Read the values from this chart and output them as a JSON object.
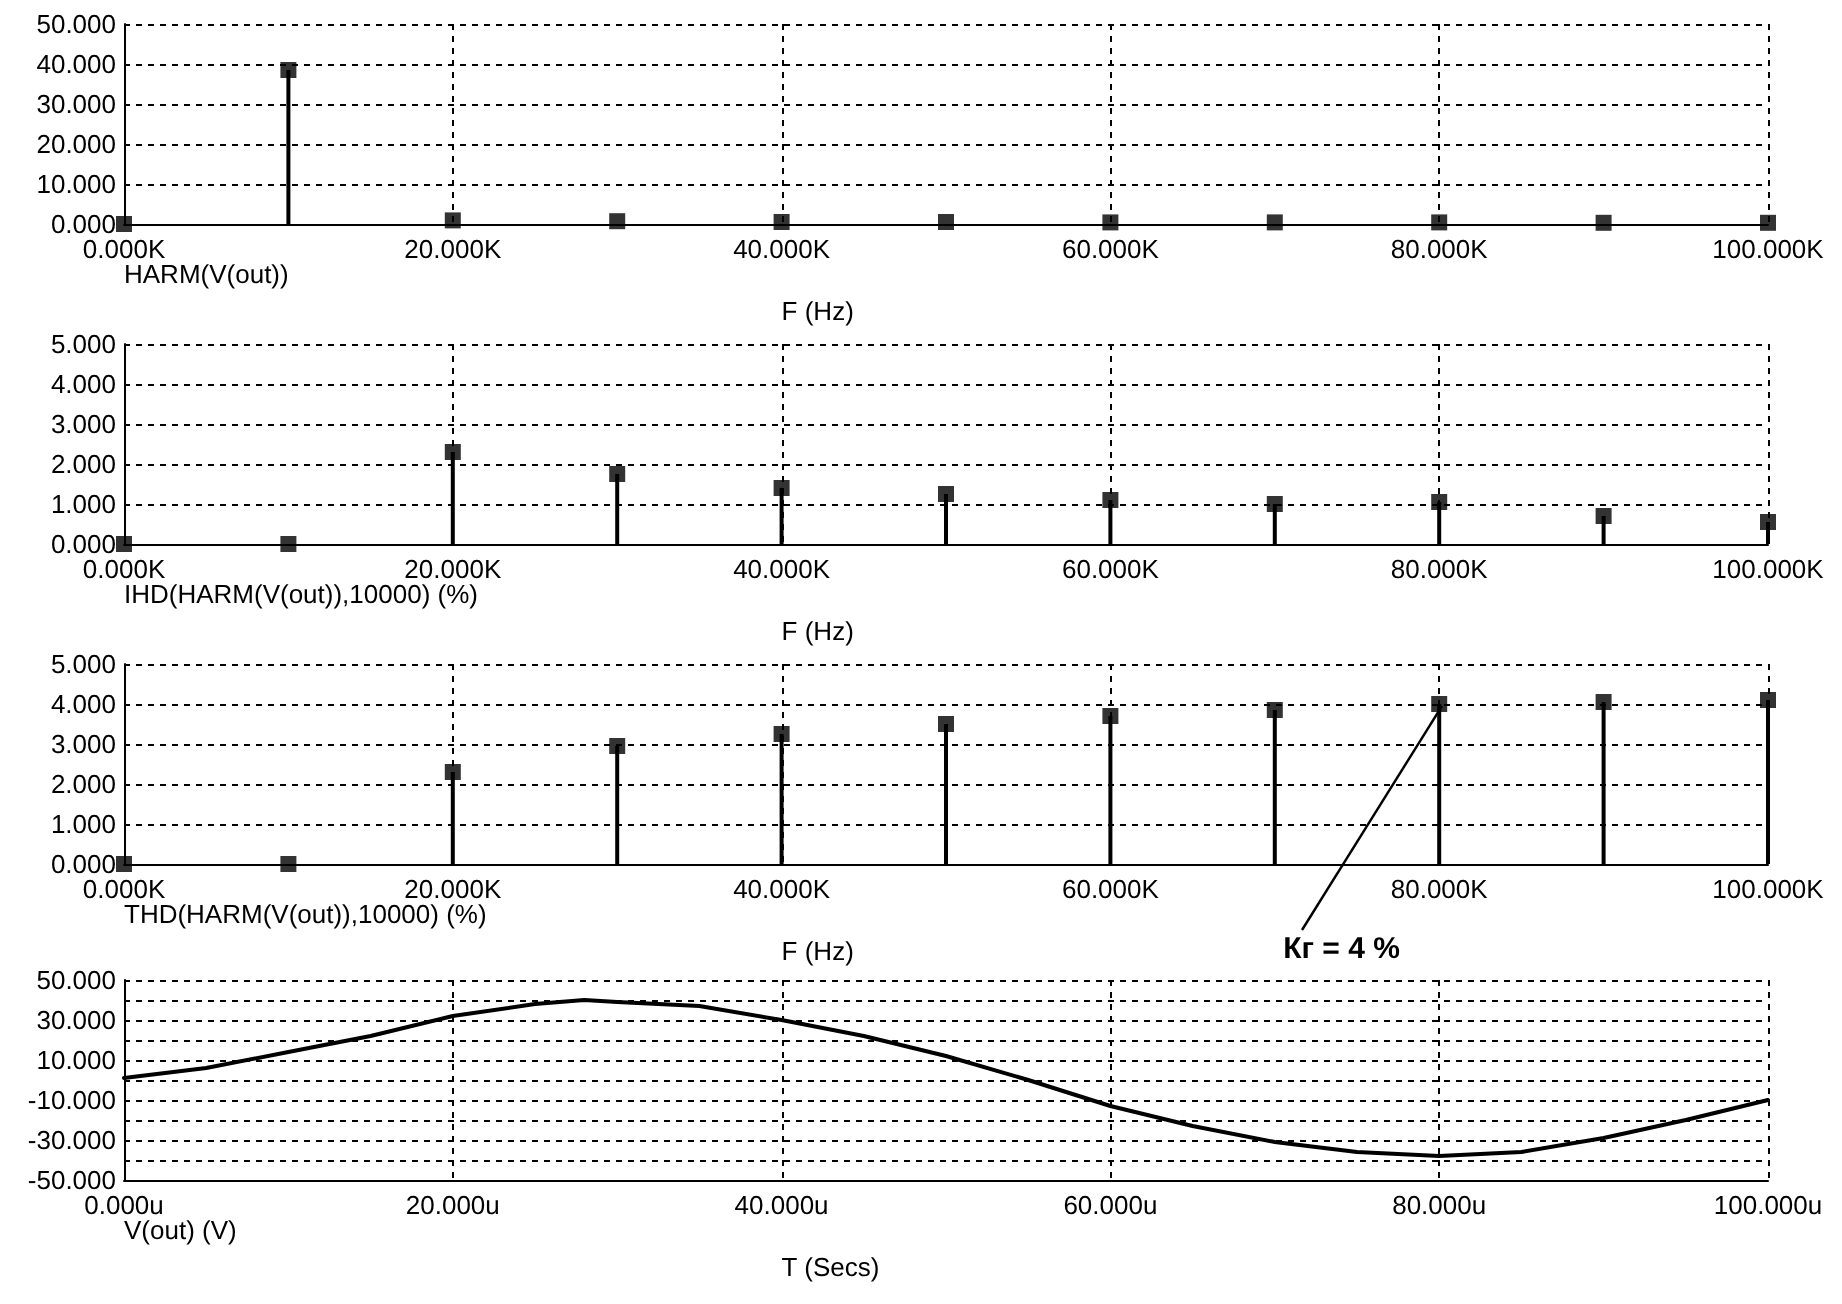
{
  "chart_data": [
    {
      "type": "lollipop",
      "xlabel": "F (Hz)",
      "marker": "square",
      "grid": true,
      "legend": "bottom left",
      "x": [
        0,
        10000,
        20000,
        30000,
        40000,
        50000,
        60000,
        70000,
        80000,
        90000,
        100000
      ],
      "series": [
        {
          "name": "HARM(V(out))",
          "color": "#000000",
          "values": [
            0,
            38.5,
            0.9,
            0.7,
            0.5,
            0.5,
            0.4,
            0.4,
            0.4,
            0.3,
            0.3
          ]
        }
      ],
      "xlim": [
        0,
        100000
      ],
      "xticks": [
        {
          "value": 0,
          "label": "0.000K"
        },
        {
          "value": 20000,
          "label": "20.000K"
        },
        {
          "value": 40000,
          "label": "40.000K"
        },
        {
          "value": 60000,
          "label": "60.000K"
        },
        {
          "value": 80000,
          "label": "80.000K"
        },
        {
          "value": 100000,
          "label": "100.000K"
        }
      ],
      "ylim": [
        0,
        50
      ],
      "yticks": [
        {
          "value": 0,
          "label": "0.000"
        },
        {
          "value": 10,
          "label": "10.000"
        },
        {
          "value": 20,
          "label": "20.000"
        },
        {
          "value": 30,
          "label": "30.000"
        },
        {
          "value": 40,
          "label": "40.000"
        },
        {
          "value": 50,
          "label": "50.000"
        }
      ]
    },
    {
      "type": "lollipop",
      "xlabel": "F (Hz)",
      "marker": "square",
      "grid": true,
      "legend": "bottom left",
      "x": [
        0,
        10000,
        20000,
        30000,
        40000,
        50000,
        60000,
        70000,
        80000,
        90000,
        100000
      ],
      "series": [
        {
          "name": "IHD(HARM(V(out)),10000) (%)",
          "color": "#000000",
          "values": [
            0,
            0,
            2.3,
            1.75,
            1.4,
            1.25,
            1.1,
            1.0,
            1.05,
            0.7,
            0.55
          ]
        }
      ],
      "xlim": [
        0,
        100000
      ],
      "xticks": [
        {
          "value": 0,
          "label": "0.000K"
        },
        {
          "value": 20000,
          "label": "20.000K"
        },
        {
          "value": 40000,
          "label": "40.000K"
        },
        {
          "value": 60000,
          "label": "60.000K"
        },
        {
          "value": 80000,
          "label": "80.000K"
        },
        {
          "value": 100000,
          "label": "100.000K"
        }
      ],
      "ylim": [
        0,
        5
      ],
      "yticks": [
        {
          "value": 0,
          "label": "0.000"
        },
        {
          "value": 1,
          "label": "1.000"
        },
        {
          "value": 2,
          "label": "2.000"
        },
        {
          "value": 3,
          "label": "3.000"
        },
        {
          "value": 4,
          "label": "4.000"
        },
        {
          "value": 5,
          "label": "5.000"
        }
      ]
    },
    {
      "type": "lollipop",
      "xlabel": "F (Hz)",
      "marker": "square",
      "grid": true,
      "legend": "bottom left",
      "x": [
        0,
        10000,
        20000,
        30000,
        40000,
        50000,
        60000,
        70000,
        80000,
        90000,
        100000
      ],
      "series": [
        {
          "name": "THD(HARM(V(out)),10000) (%)",
          "color": "#000000",
          "values": [
            0,
            0,
            2.3,
            2.95,
            3.25,
            3.5,
            3.7,
            3.85,
            4.0,
            4.05,
            4.1
          ]
        }
      ],
      "xlim": [
        0,
        100000
      ],
      "xticks": [
        {
          "value": 0,
          "label": "0.000K"
        },
        {
          "value": 20000,
          "label": "20.000K"
        },
        {
          "value": 40000,
          "label": "40.000K"
        },
        {
          "value": 60000,
          "label": "60.000K"
        },
        {
          "value": 80000,
          "label": "80.000K"
        },
        {
          "value": 100000,
          "label": "100.000K"
        }
      ],
      "ylim": [
        0,
        5
      ],
      "yticks": [
        {
          "value": 0,
          "label": "0.000"
        },
        {
          "value": 1,
          "label": "1.000"
        },
        {
          "value": 2,
          "label": "2.000"
        },
        {
          "value": 3,
          "label": "3.000"
        },
        {
          "value": 4,
          "label": "4.000"
        },
        {
          "value": 5,
          "label": "5.000"
        }
      ],
      "annotations": [
        {
          "text": "Кг = 4 %",
          "x": 80000,
          "y": 4.0
        }
      ]
    },
    {
      "type": "line",
      "xlabel": "T (Secs)",
      "marker": "none",
      "line_style": "solid",
      "grid": true,
      "legend": "bottom left",
      "x": [
        0,
        5,
        10,
        15,
        20,
        25,
        28,
        30,
        35,
        40,
        45,
        50,
        55,
        60,
        65,
        70,
        75,
        80,
        85,
        90,
        95,
        100
      ],
      "series": [
        {
          "name": "V(out) (V)",
          "color": "#000000",
          "values": [
            1,
            6,
            14,
            22,
            32,
            38,
            40,
            39,
            37,
            30,
            22,
            12,
            0,
            -13,
            -23,
            -31,
            -36,
            -38,
            -36,
            -29,
            -20,
            -10
          ]
        }
      ],
      "xlim": [
        0,
        100
      ],
      "xticks": [
        {
          "value": 0,
          "label": "0.000u"
        },
        {
          "value": 20,
          "label": "20.000u"
        },
        {
          "value": 40,
          "label": "40.000u"
        },
        {
          "value": 60,
          "label": "60.000u"
        },
        {
          "value": 80,
          "label": "80.000u"
        },
        {
          "value": 100,
          "label": "100.000u"
        }
      ],
      "ylim": [
        -50,
        50
      ],
      "yticks": [
        {
          "value": -50,
          "label": "-50.000"
        },
        {
          "value": -40,
          "label": null
        },
        {
          "value": -30,
          "label": "-30.000"
        },
        {
          "value": -20,
          "label": null
        },
        {
          "value": -10,
          "label": "-10.000"
        },
        {
          "value": 0,
          "label": null
        },
        {
          "value": 10,
          "label": "10.000"
        },
        {
          "value": 20,
          "label": null
        },
        {
          "value": 30,
          "label": "30.000"
        },
        {
          "value": 40,
          "label": null
        },
        {
          "value": 50,
          "label": "50.000"
        }
      ]
    }
  ]
}
